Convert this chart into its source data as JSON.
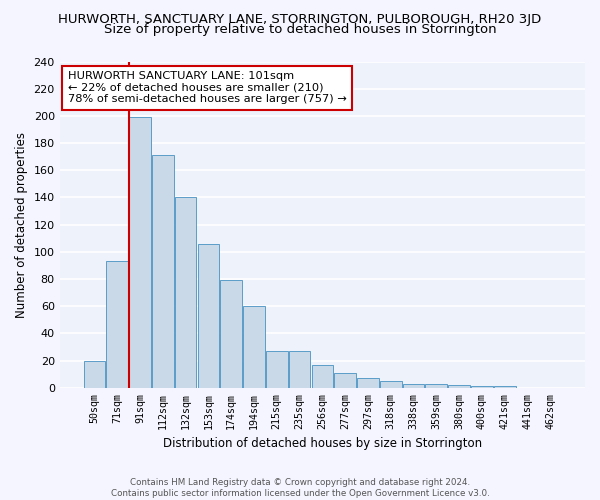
{
  "title": "HURWORTH, SANCTUARY LANE, STORRINGTON, PULBOROUGH, RH20 3JD",
  "subtitle": "Size of property relative to detached houses in Storrington",
  "xlabel": "Distribution of detached houses by size in Storrington",
  "ylabel": "Number of detached properties",
  "categories": [
    "50sqm",
    "71sqm",
    "91sqm",
    "112sqm",
    "132sqm",
    "153sqm",
    "174sqm",
    "194sqm",
    "215sqm",
    "235sqm",
    "256sqm",
    "277sqm",
    "297sqm",
    "318sqm",
    "338sqm",
    "359sqm",
    "380sqm",
    "400sqm",
    "421sqm",
    "441sqm",
    "462sqm"
  ],
  "values": [
    20,
    93,
    199,
    171,
    140,
    106,
    79,
    60,
    27,
    27,
    17,
    11,
    7,
    5,
    3,
    3,
    2,
    1,
    1,
    0,
    0
  ],
  "bar_color": "#c9d9e8",
  "bar_edge_color": "#5b9dc9",
  "background_color": "#eef2fb",
  "grid_color": "#ffffff",
  "annotation_text": "HURWORTH SANCTUARY LANE: 101sqm\n← 22% of detached houses are smaller (210)\n78% of semi-detached houses are larger (757) →",
  "annotation_box_color": "#ffffff",
  "annotation_box_edge": "#cc0000",
  "vline_color": "#cc0000",
  "ylim": [
    0,
    240
  ],
  "yticks": [
    0,
    20,
    40,
    60,
    80,
    100,
    120,
    140,
    160,
    180,
    200,
    220,
    240
  ],
  "footnote": "Contains HM Land Registry data © Crown copyright and database right 2024.\nContains public sector information licensed under the Open Government Licence v3.0.",
  "title_fontsize": 9.5,
  "subtitle_fontsize": 9.5,
  "xlabel_fontsize": 8.5,
  "ylabel_fontsize": 8.5,
  "annotation_fontsize": 8.2
}
